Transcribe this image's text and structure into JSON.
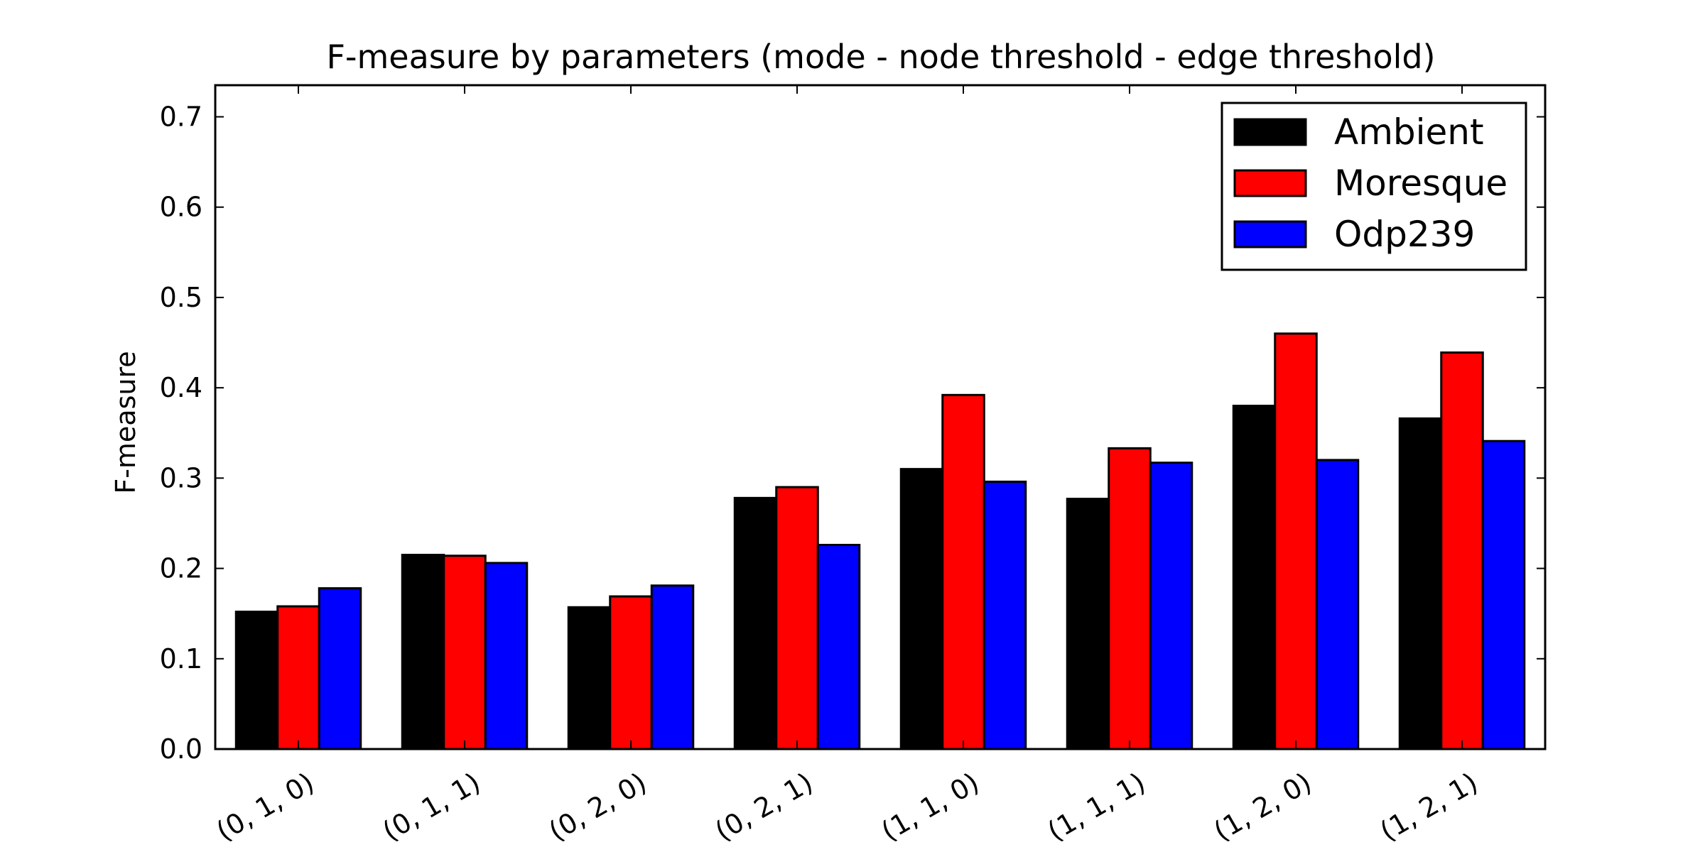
{
  "chart_data": {
    "type": "bar",
    "title": "F-measure by parameters (mode - node threshold - edge threshold)",
    "xlabel": "",
    "ylabel": "F-measure",
    "categories": [
      "(0, 1, 0)",
      "(0, 1, 1)",
      "(0, 2, 0)",
      "(0, 2, 1)",
      "(1, 1, 0)",
      "(1, 1, 1)",
      "(1, 2, 0)",
      "(1, 2, 1)"
    ],
    "series": [
      {
        "name": "Ambient",
        "color": "#000000",
        "values": [
          0.152,
          0.215,
          0.157,
          0.278,
          0.31,
          0.277,
          0.38,
          0.366
        ]
      },
      {
        "name": "Moresque",
        "color": "#ff0000",
        "values": [
          0.158,
          0.214,
          0.169,
          0.29,
          0.392,
          0.333,
          0.46,
          0.439
        ]
      },
      {
        "name": "Odp239",
        "color": "#0000ff",
        "values": [
          0.178,
          0.206,
          0.181,
          0.226,
          0.296,
          0.317,
          0.32,
          0.341
        ]
      }
    ],
    "yticks": [
      "0.0",
      "0.1",
      "0.2",
      "0.3",
      "0.4",
      "0.5",
      "0.6",
      "0.7"
    ],
    "ylim": [
      0,
      0.735
    ],
    "grid": false,
    "legend_position": "top-right"
  }
}
